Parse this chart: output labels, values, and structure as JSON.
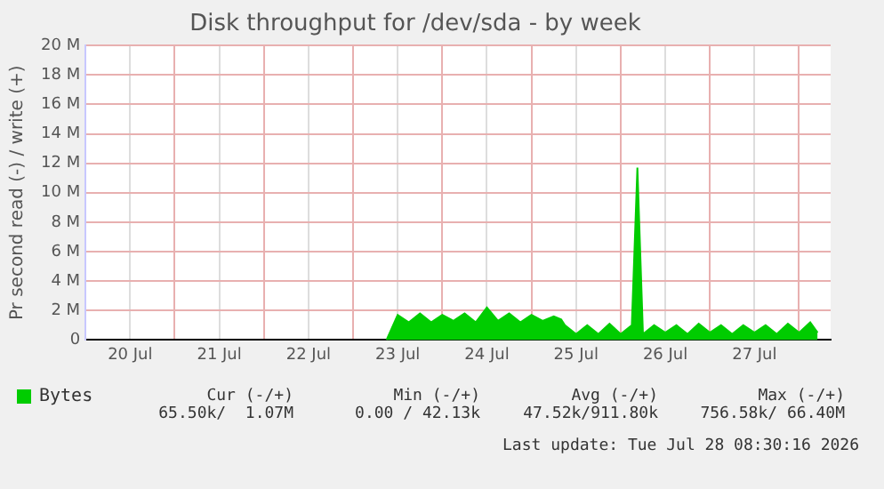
{
  "chart_data": {
    "type": "area",
    "title": "Disk throughput for /dev/sda - by week",
    "ylabel": "Pr second read (-) / write (+)",
    "x": [
      "2026-07-23T09:00",
      "2026-07-23T12:00",
      "2026-07-23T15:00",
      "2026-07-23T18:00",
      "2026-07-23T21:00",
      "2026-07-24T00:00",
      "2026-07-24T03:00",
      "2026-07-24T06:00",
      "2026-07-24T09:00",
      "2026-07-24T12:00",
      "2026-07-24T15:00",
      "2026-07-24T18:00",
      "2026-07-24T21:00",
      "2026-07-25T00:00",
      "2026-07-25T03:00",
      "2026-07-25T06:00",
      "2026-07-25T08:00",
      "2026-07-25T09:00",
      "2026-07-25T12:00",
      "2026-07-25T15:00",
      "2026-07-25T18:00",
      "2026-07-25T21:00",
      "2026-07-26T00:00",
      "2026-07-26T03:00",
      "2026-07-26T04:30",
      "2026-07-26T06:00",
      "2026-07-26T09:00",
      "2026-07-26T12:00",
      "2026-07-26T15:00",
      "2026-07-26T18:00",
      "2026-07-26T21:00",
      "2026-07-27T00:00",
      "2026-07-27T03:00",
      "2026-07-27T06:00",
      "2026-07-27T09:00",
      "2026-07-27T12:00",
      "2026-07-27T15:00",
      "2026-07-27T18:00",
      "2026-07-27T21:00",
      "2026-07-28T00:00",
      "2026-07-28T03:00",
      "2026-07-28T05:00"
    ],
    "series": [
      {
        "name": "Bytes",
        "color": "#00cc00",
        "values": [
          0,
          1.7,
          1.2,
          1.8,
          1.2,
          1.7,
          1.3,
          1.8,
          1.2,
          2.2,
          1.3,
          1.8,
          1.2,
          1.7,
          1.3,
          1.6,
          1.4,
          1.0,
          0.4,
          1.0,
          0.4,
          1.1,
          0.4,
          1.0,
          11.7,
          0.4,
          1.0,
          0.5,
          1.0,
          0.4,
          1.1,
          0.5,
          1.0,
          0.4,
          1.0,
          0.5,
          1.0,
          0.4,
          1.1,
          0.5,
          1.2,
          0.5
        ]
      }
    ],
    "xlim": [
      "2026-07-20T00:00",
      "2026-07-28T08:30"
    ],
    "xticks": [
      {
        "value": "2026-07-20T00:00",
        "label": null
      },
      {
        "value": "2026-07-20T12:00",
        "label": "20 Jul"
      },
      {
        "value": "2026-07-21T00:00",
        "label": null
      },
      {
        "value": "2026-07-21T12:00",
        "label": "21 Jul"
      },
      {
        "value": "2026-07-22T00:00",
        "label": null
      },
      {
        "value": "2026-07-22T12:00",
        "label": "22 Jul"
      },
      {
        "value": "2026-07-23T00:00",
        "label": null
      },
      {
        "value": "2026-07-23T12:00",
        "label": "23 Jul"
      },
      {
        "value": "2026-07-24T00:00",
        "label": null
      },
      {
        "value": "2026-07-24T12:00",
        "label": "24 Jul"
      },
      {
        "value": "2026-07-25T00:00",
        "label": null
      },
      {
        "value": "2026-07-25T12:00",
        "label": "25 Jul"
      },
      {
        "value": "2026-07-26T00:00",
        "label": null
      },
      {
        "value": "2026-07-26T12:00",
        "label": "26 Jul"
      },
      {
        "value": "2026-07-27T00:00",
        "label": null
      },
      {
        "value": "2026-07-27T12:00",
        "label": "27 Jul"
      },
      {
        "value": "2026-07-28T00:00",
        "label": null
      }
    ],
    "ylim": [
      0,
      20
    ],
    "yticks": [
      0,
      {
        "value": 2,
        "label": "2 M"
      },
      {
        "value": 4,
        "label": "4 M"
      },
      {
        "value": 6,
        "label": "6 M"
      },
      {
        "value": 8,
        "label": "8 M"
      },
      {
        "value": 10,
        "label": "10 M"
      },
      {
        "value": 12,
        "label": "12 M"
      },
      {
        "value": 14,
        "label": "14 M"
      },
      {
        "value": 16,
        "label": "16 M"
      },
      {
        "value": 18,
        "label": "18 M"
      },
      {
        "value": 20,
        "label": "20 M"
      }
    ],
    "grid": true,
    "legend": "bottom left",
    "annotations": [
      "Cur (-/+)",
      "Min (-/+)",
      "Avg (-/+)",
      "Max (-/+)",
      "65.50k/  1.07M",
      "0.00 / 42.13k",
      "47.52k/911.80k",
      "756.58k/ 66.40M",
      "Last update: Tue Jul 28 08:30:16 2026"
    ]
  }
}
